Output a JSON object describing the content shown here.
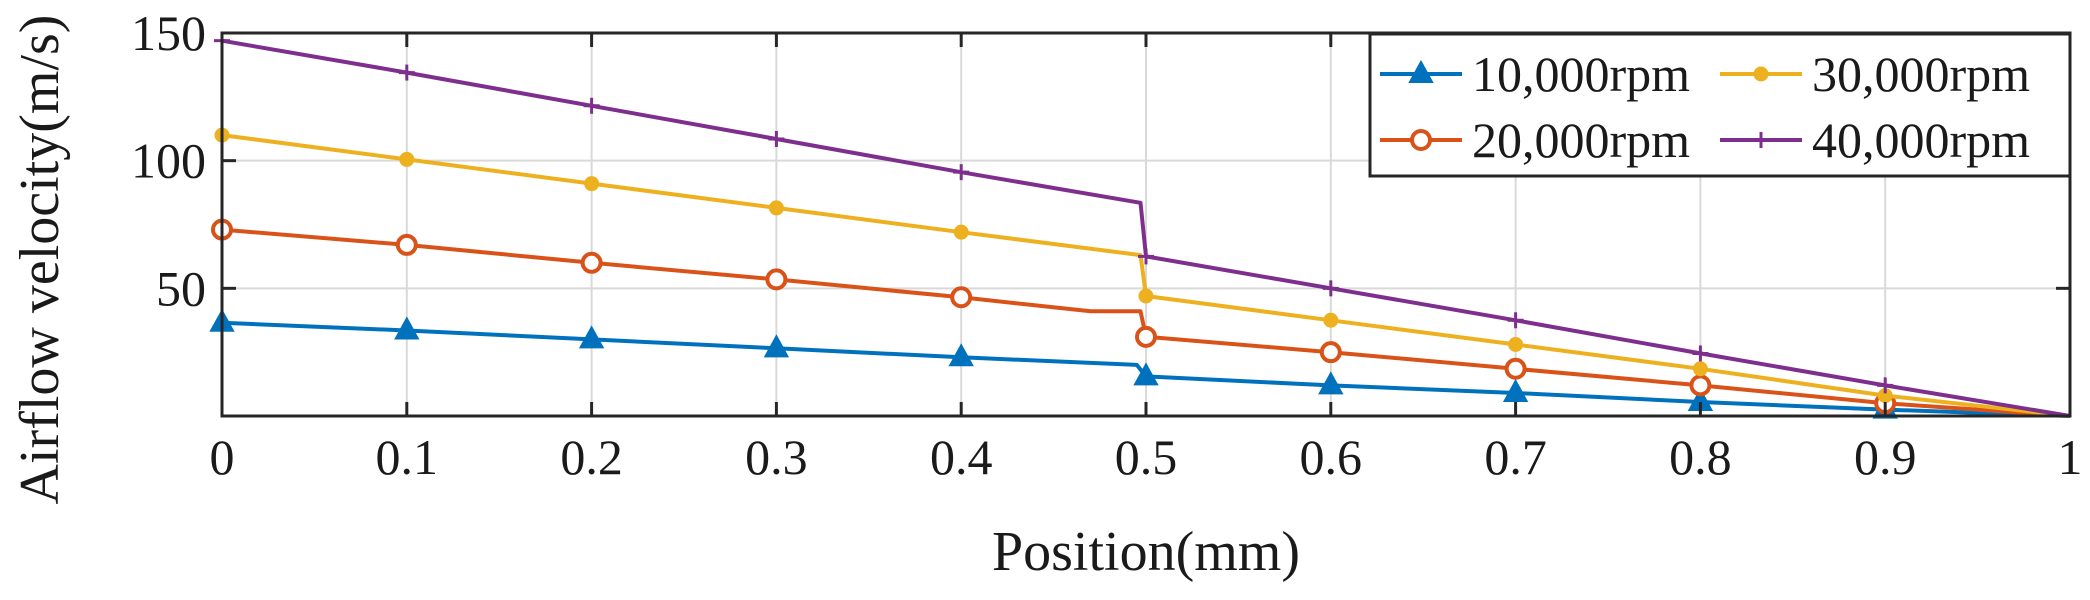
{
  "chart_data": {
    "type": "line",
    "title": "",
    "xlabel": "Position(mm)",
    "ylabel": "Airflow velocity(m/s)",
    "xlim": [
      0,
      1
    ],
    "ylim": [
      0,
      150
    ],
    "grid": true,
    "legend_position": "top-right",
    "x_ticks": [
      {
        "value": 0,
        "label": "0"
      },
      {
        "value": 0.1,
        "label": "0.1"
      },
      {
        "value": 0.2,
        "label": "0.2"
      },
      {
        "value": 0.3,
        "label": "0.3"
      },
      {
        "value": 0.4,
        "label": "0.4"
      },
      {
        "value": 0.5,
        "label": "0.5"
      },
      {
        "value": 0.6,
        "label": "0.6"
      },
      {
        "value": 0.7,
        "label": "0.7"
      },
      {
        "value": 0.8,
        "label": "0.8"
      },
      {
        "value": 0.9,
        "label": "0.9"
      },
      {
        "value": 1,
        "label": "1"
      }
    ],
    "y_ticks": [
      {
        "value": 50,
        "label": "50"
      },
      {
        "value": 100,
        "label": "100"
      },
      {
        "value": 150,
        "label": "150"
      }
    ],
    "series": [
      {
        "name": "10,000rpm",
        "color": "#0072BD",
        "marker": "triangle",
        "x": [
          0,
          0.1,
          0.2,
          0.3,
          0.4,
          0.495,
          0.5,
          0.6,
          0.7,
          0.8,
          0.9,
          1.0
        ],
        "y": [
          36.5,
          33.5,
          30,
          26.5,
          23,
          20,
          15.5,
          12,
          9,
          5.5,
          2.5,
          0
        ],
        "marker_x": [
          0,
          0.1,
          0.2,
          0.3,
          0.4,
          0.5,
          0.6,
          0.7,
          0.8,
          0.9
        ],
        "marker_y": [
          36.5,
          33.5,
          30,
          26.5,
          23,
          15.5,
          12,
          9,
          5.5,
          2.5
        ]
      },
      {
        "name": "20,000rpm",
        "color": "#D95319",
        "marker": "circle",
        "x": [
          0,
          0.1,
          0.2,
          0.3,
          0.4,
          0.47,
          0.497,
          0.5,
          0.6,
          0.7,
          0.8,
          0.9,
          1.0
        ],
        "y": [
          73,
          67,
          60,
          53.5,
          46.5,
          41,
          41,
          31,
          25,
          18.5,
          12,
          5,
          0
        ],
        "marker_x": [
          0,
          0.1,
          0.2,
          0.3,
          0.4,
          0.5,
          0.6,
          0.7,
          0.8,
          0.9
        ],
        "marker_y": [
          73,
          67,
          60,
          53.5,
          46.5,
          31,
          25,
          18.5,
          12,
          5
        ]
      },
      {
        "name": "30,000rpm",
        "color": "#EDB120",
        "marker": "dot",
        "x": [
          0,
          0.1,
          0.2,
          0.3,
          0.4,
          0.497,
          0.5,
          0.6,
          0.7,
          0.8,
          0.9,
          1.0
        ],
        "y": [
          110,
          100.5,
          91,
          81.5,
          72,
          63,
          47,
          37.5,
          28,
          18.5,
          8,
          0
        ],
        "marker_x": [
          0,
          0.1,
          0.2,
          0.3,
          0.4,
          0.5,
          0.6,
          0.7,
          0.8,
          0.9
        ],
        "marker_y": [
          110,
          100.5,
          91,
          81.5,
          72,
          47,
          37.5,
          28,
          18.5,
          8
        ]
      },
      {
        "name": "40,000rpm",
        "color": "#7E2F8E",
        "marker": "plus",
        "x": [
          0,
          0.1,
          0.2,
          0.3,
          0.4,
          0.497,
          0.5,
          0.6,
          0.7,
          0.8,
          0.9,
          1.0
        ],
        "y": [
          147,
          134.5,
          121.5,
          108.5,
          95.5,
          83.5,
          62.5,
          50,
          37.5,
          24.5,
          12,
          0
        ],
        "marker_x": [
          0,
          0.1,
          0.2,
          0.3,
          0.4,
          0.5,
          0.6,
          0.7,
          0.8,
          0.9
        ],
        "marker_y": [
          147,
          134.5,
          121.5,
          108.5,
          95.5,
          62.5,
          50,
          37.5,
          24.5,
          12
        ]
      }
    ]
  }
}
